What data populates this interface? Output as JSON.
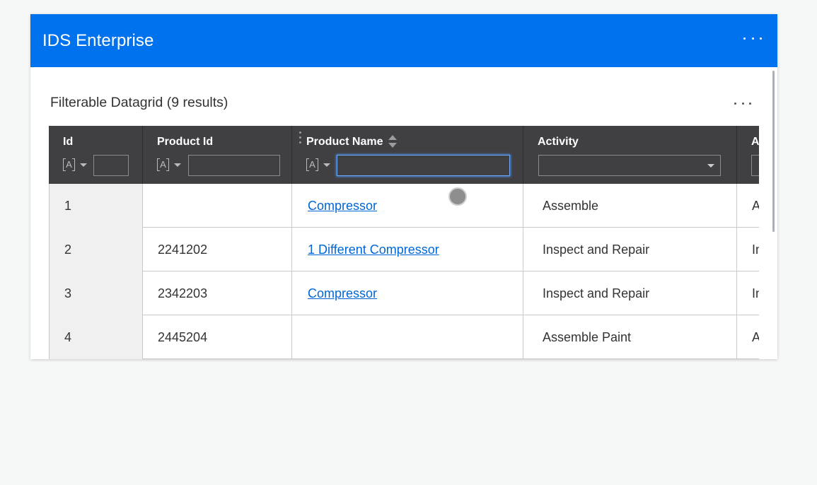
{
  "app": {
    "title": "IDS Enterprise",
    "menu_icon": "more-horizontal-icon"
  },
  "card": {
    "title": "Filterable Datagrid (9 results)",
    "menu_icon": "more-horizontal-icon"
  },
  "colors": {
    "header_blue": "#0072ed",
    "grid_header": "#404043",
    "link": "#0066d4"
  },
  "columns": [
    {
      "label": "Id",
      "filter_type": "[A]",
      "filter_value": ""
    },
    {
      "label": "Product Id",
      "filter_type": "[A]",
      "filter_value": ""
    },
    {
      "label": "Product Name",
      "filter_type": "[A]",
      "filter_value": "",
      "sortable": true
    },
    {
      "label": "Activity",
      "filter_type": "select",
      "filter_value": ""
    },
    {
      "label": "A"
    }
  ],
  "rows": [
    {
      "id": "1",
      "product_id": "",
      "product_name": "Compressor",
      "activity": "Assemble",
      "next": "A"
    },
    {
      "id": "2",
      "product_id": "2241202",
      "product_name": "1 Different Compressor",
      "activity": "Inspect and Repair",
      "next": "In"
    },
    {
      "id": "3",
      "product_id": "2342203",
      "product_name": "Compressor",
      "activity": "Inspect and Repair",
      "next": "In"
    },
    {
      "id": "4",
      "product_id": "2445204",
      "product_name": "",
      "activity": "Assemble Paint",
      "next": "A"
    }
  ]
}
